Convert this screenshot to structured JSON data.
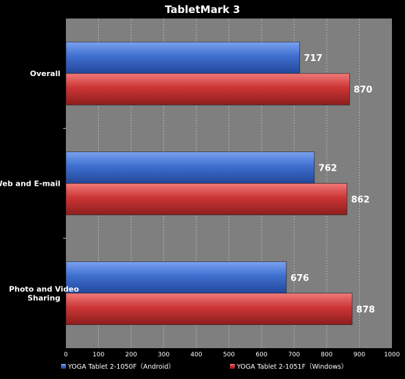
{
  "chart_data": {
    "type": "bar",
    "orientation": "horizontal",
    "title": "TabletMark 3",
    "xlabel": "",
    "ylabel": "",
    "categories": [
      "Overall",
      "Web and E-mail",
      "Photo and Video Sharing"
    ],
    "category_lines": [
      [
        "Overall"
      ],
      [
        "Web and E-mail"
      ],
      [
        "Photo and Video",
        "Sharing"
      ]
    ],
    "series": [
      {
        "name": "YOGA Tablet 2-1050F（Android）",
        "values": [
          717,
          762,
          676
        ],
        "color": "#3f6fcf"
      },
      {
        "name": "YOGA Tablet 2-1051F（Windows）",
        "values": [
          870,
          862,
          878
        ],
        "color": "#cc3535"
      }
    ],
    "xlim": [
      0,
      1000
    ],
    "x_ticks": [
      0,
      100,
      200,
      300,
      400,
      500,
      600,
      700,
      800,
      900,
      1000
    ],
    "grid": true,
    "legend_position": "bottom",
    "data_labels": true,
    "colors": {
      "background": "#000000",
      "plot_area": "#7f7f7f",
      "gridline": "#b4b4b4",
      "text": "#ffffff"
    }
  }
}
